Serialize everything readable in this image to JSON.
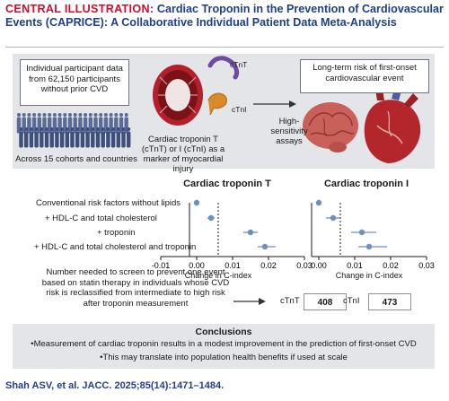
{
  "header": {
    "lead": "CENTRAL ILLUSTRATION:",
    "title": "Cardiac Troponin in the Prevention of Cardiovascular Events (CAPRICE): A Collaborative Individual Patient Data Meta-Analysis"
  },
  "top": {
    "participants": "Individual participant data from 62,150 participants without prior CVD",
    "cohorts": "Across 15 cohorts and countries",
    "ctnt": "cTnT",
    "ctni": "cTnI",
    "troponin_caption": "Cardiac troponin T (cTnT) or I (cTnI) as a marker of myocardial injury",
    "assays": "High-sensitivity assays",
    "risk": "Long-term risk of first-onset cardiovascular event"
  },
  "chart_data": [
    {
      "type": "scatter",
      "title": "Cardiac troponin T",
      "categories": [
        "Conventional risk factors without lipids",
        "+ HDL-C and total cholesterol",
        "+ troponin",
        "+ HDL-C and total cholesterol and troponin"
      ],
      "values": [
        0.0,
        0.004,
        0.015,
        0.019
      ],
      "ci_low": [
        0.0,
        0.003,
        0.013,
        0.017
      ],
      "ci_high": [
        0.0,
        0.005,
        0.017,
        0.022
      ],
      "xlabel": "Change in C-index",
      "xlim": [
        -0.01,
        0.03
      ],
      "ticks": [
        "-0.01",
        "0.00",
        "0.01",
        "0.02",
        "0.03"
      ],
      "color": "#6f8fbf"
    },
    {
      "type": "scatter",
      "title": "Cardiac troponin I",
      "categories": [
        "Conventional risk factors without lipids",
        "+ HDL-C and total cholesterol",
        "+ troponin",
        "+ HDL-C and total cholesterol and troponin"
      ],
      "values": [
        0.0,
        0.004,
        0.012,
        0.014
      ],
      "ci_low": [
        0.0,
        0.002,
        0.009,
        0.011
      ],
      "ci_high": [
        0.0,
        0.006,
        0.016,
        0.019
      ],
      "xlabel": "Change in C-index",
      "xlim": [
        -0.01,
        0.03
      ],
      "ticks": [
        "-0.01",
        "0.00",
        "0.01",
        "0.02",
        "0.03"
      ],
      "color": "#6f8fbf"
    }
  ],
  "nnt": {
    "text": "Number needed to screen to prevent one event based on statin therapy in individuals whose CVD risk is reclassified from intermediate to high risk after troponin measurement",
    "ctnt_label": "cTnT",
    "ctnt_value": "408",
    "ctni_label": "cTnI",
    "ctni_value": "473"
  },
  "conclusions": {
    "title": "Conclusions",
    "items": [
      "•Measurement of cardiac troponin results in a modest improvement in the prediction of first-onset CVD",
      "•This may translate into population health benefits if used at scale"
    ]
  },
  "citation": "Shah ASV, et al. JACC. 2025;85(14):1471–1484."
}
